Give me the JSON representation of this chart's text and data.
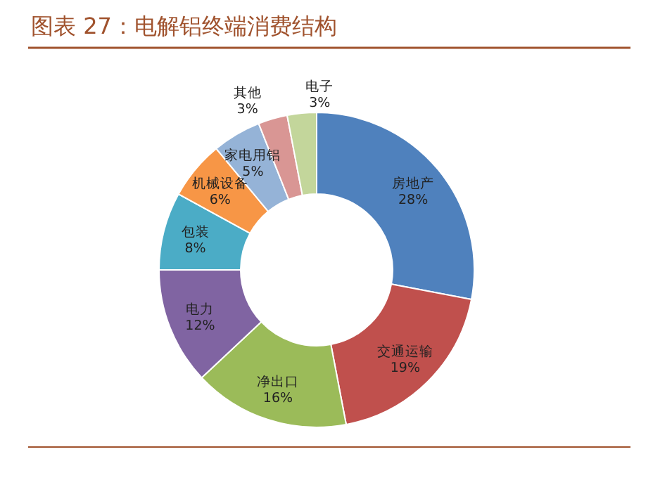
{
  "chart_data": {
    "type": "donut",
    "title": "图表 27：电解铝终端消费结构",
    "categories": [
      "房地产",
      "交通运输",
      "净出口",
      "电力",
      "包装",
      "机械设备",
      "家电用铝",
      "其他",
      "电子"
    ],
    "values": [
      28,
      19,
      16,
      12,
      8,
      6,
      5,
      3,
      3
    ],
    "value_labels": [
      "28%",
      "19%",
      "16%",
      "12%",
      "8%",
      "6%",
      "5%",
      "3%",
      "3%"
    ],
    "colors": [
      "#4f81bd",
      "#c0504d",
      "#9bbb59",
      "#8064a2",
      "#4bacc6",
      "#f79646",
      "#95b3d7",
      "#d99694",
      "#c3d69b"
    ]
  }
}
